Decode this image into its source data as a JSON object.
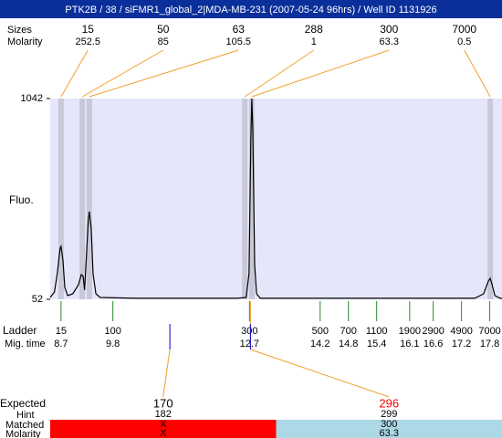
{
  "chart_data": {
    "type": "line",
    "title": "PTK2B / 38 / siFMR1_global_2|MDA-MB-231 (2007-05-24 96hrs) / Well ID 1131926",
    "y_label": "Fluo.",
    "ylim": [
      52,
      1042
    ],
    "yticks": [
      52,
      1042
    ],
    "xlim": [
      8.47,
      18.06
    ],
    "color": "#000000",
    "x": [
      8.47,
      8.56,
      8.62,
      8.68,
      8.7,
      8.74,
      8.78,
      8.84,
      8.95,
      9.07,
      9.13,
      9.17,
      9.2,
      9.24,
      9.28,
      9.3,
      9.34,
      9.38,
      9.44,
      9.53,
      10.31,
      12.44,
      12.63,
      12.69,
      12.73,
      12.75,
      12.77,
      12.81,
      12.85,
      12.93,
      17.48,
      17.67,
      17.77,
      17.81,
      17.85,
      17.91,
      18.02,
      18.06
    ],
    "values": [
      61,
      88,
      178,
      304,
      313,
      246,
      111,
      70,
      79,
      124,
      174,
      165,
      97,
      268,
      448,
      484,
      403,
      178,
      79,
      61,
      57,
      57,
      61,
      178,
      853,
      1042,
      898,
      223,
      79,
      57,
      57,
      79,
      142,
      155,
      124,
      70,
      57,
      57
    ],
    "peaks": {
      "size_label": "Sizes",
      "molarity_label": "Molarity",
      "sizes": [
        15,
        50,
        63,
        288,
        300,
        7000
      ],
      "molarities": [
        252.5,
        85,
        105.5,
        1,
        63.3,
        0.5
      ],
      "times": [
        8.7,
        9.15,
        9.3,
        12.6,
        12.75,
        17.81
      ]
    },
    "ladder": {
      "label": "Ladder",
      "time_label": "Mig. time",
      "sizes": [
        15,
        100,
        300,
        500,
        700,
        1100,
        1900,
        2900,
        4900,
        7000
      ],
      "times": [
        8.7,
        9.8,
        12.7,
        14.2,
        14.8,
        15.4,
        16.1,
        16.6,
        17.2,
        17.8
      ]
    },
    "expected": {
      "label": "Expected",
      "hint_label": "Hint",
      "matched_label": "Matched",
      "molarity_label": "Molarity",
      "items": [
        {
          "size": 170,
          "time": 11.01,
          "hint": 182,
          "matched": "X",
          "molarity": "X",
          "color": "#ff0000",
          "size_color": "#000000"
        },
        {
          "size": 296,
          "time": 12.72,
          "hint": 299,
          "matched": 300,
          "molarity": 63.3,
          "color": "#add8e6",
          "size_color": "#ff0000"
        }
      ]
    }
  }
}
